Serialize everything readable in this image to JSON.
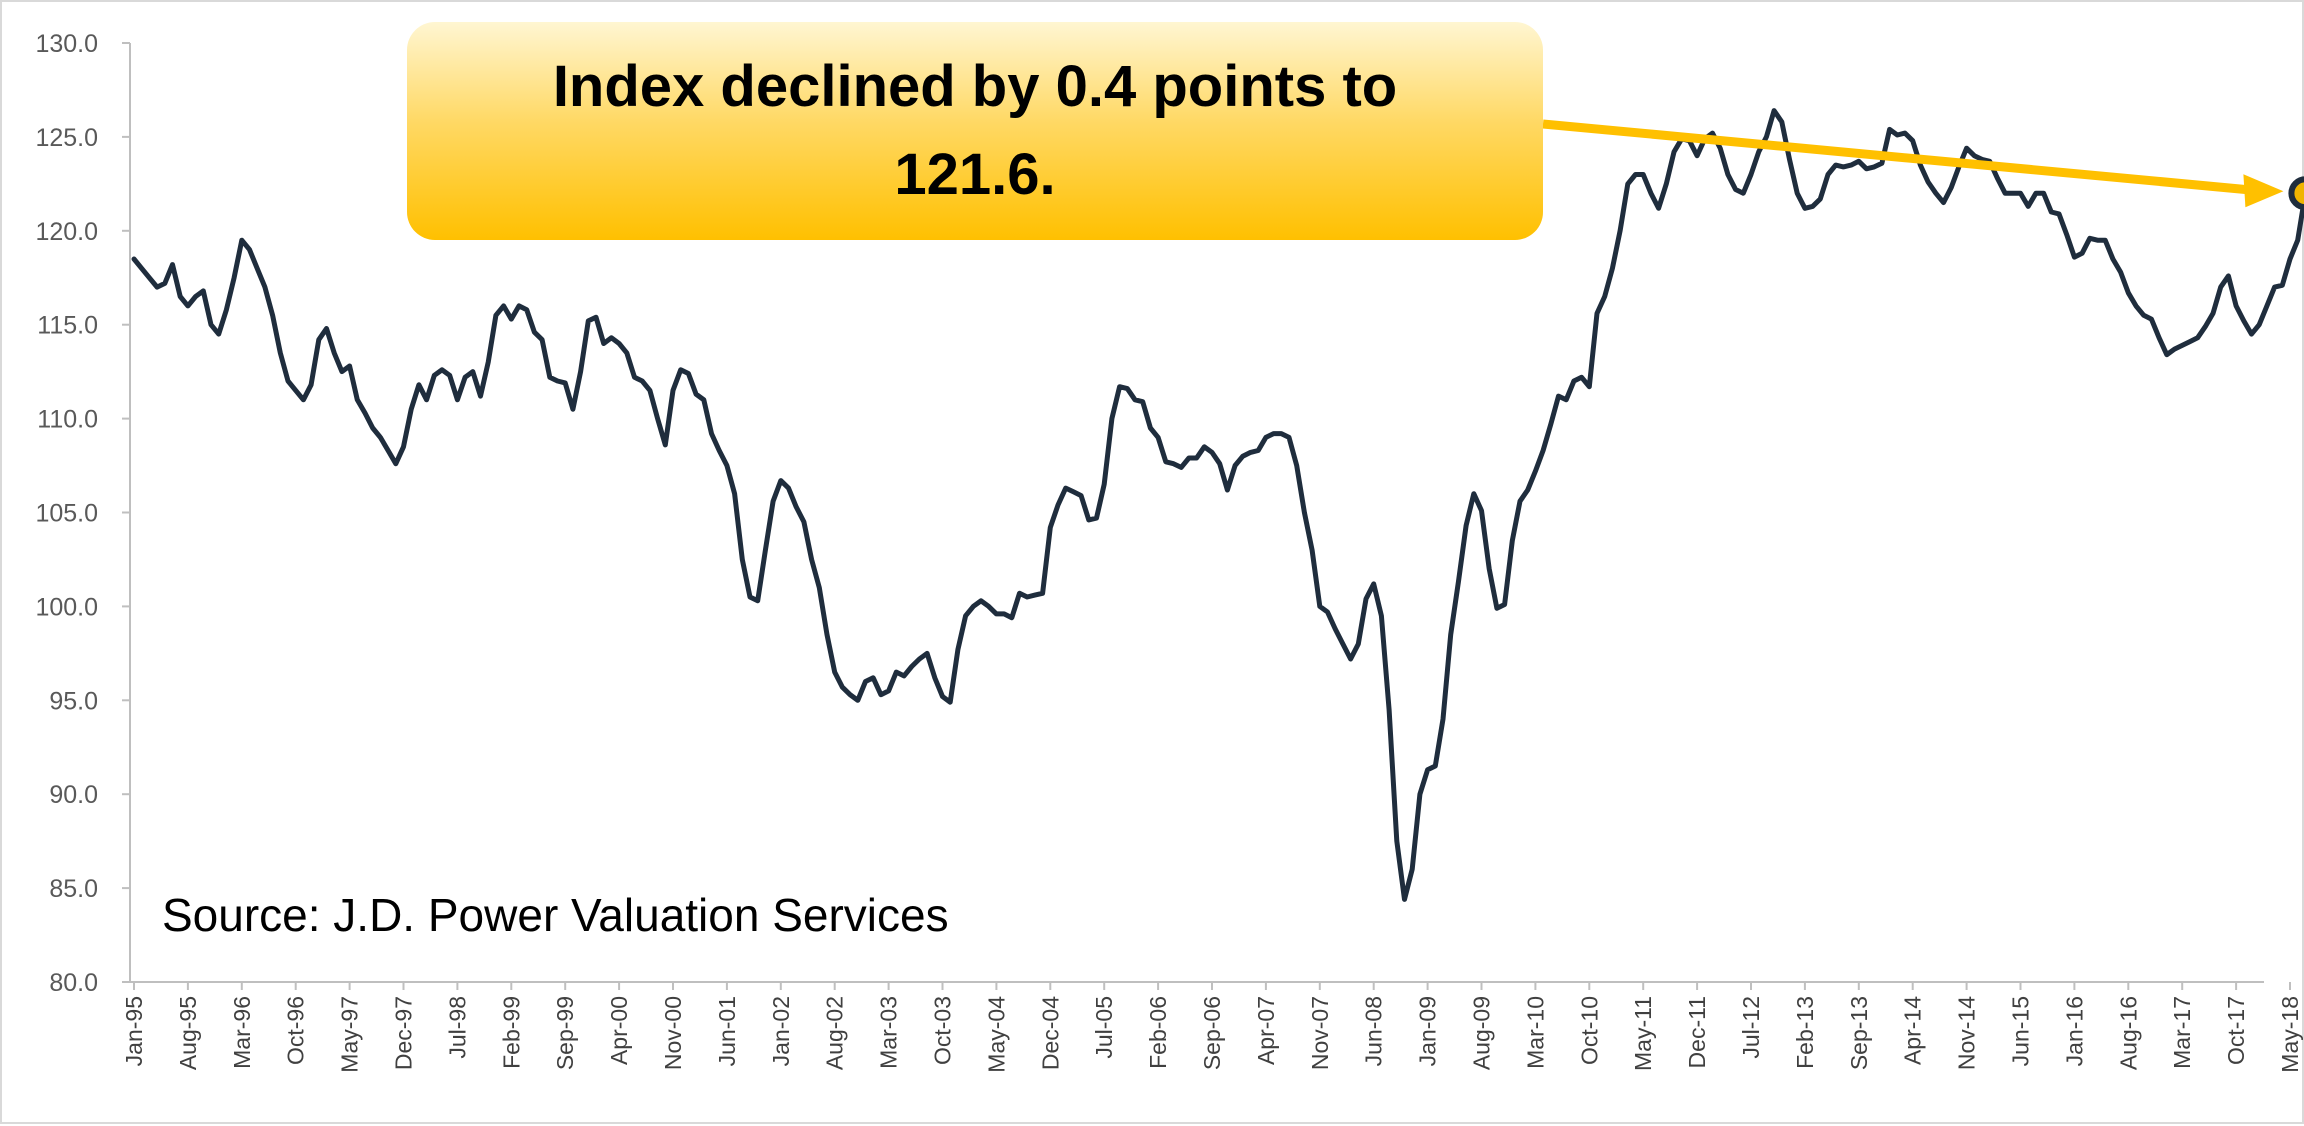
{
  "callout": {
    "text": "Index declined by 0.4 points to 121.6."
  },
  "source_note": "Source: J.D. Power Valuation Services",
  "colors": {
    "line": "#1f2d3d",
    "accent": "#ffc000",
    "marker_fill": "#f0b400",
    "axis": "#bfbfbf"
  },
  "chart_data": {
    "type": "line",
    "title": "",
    "xlabel": "",
    "ylabel": "",
    "ylim": [
      80.0,
      130.0
    ],
    "yticks": [
      "80.0",
      "85.0",
      "90.0",
      "95.0",
      "100.0",
      "105.0",
      "110.0",
      "115.0",
      "120.0",
      "125.0",
      "130.0"
    ],
    "xticks": [
      "Jan-95",
      "Aug-95",
      "Mar-96",
      "Oct-96",
      "May-97",
      "Dec-97",
      "Jul-98",
      "Feb-99",
      "Sep-99",
      "Apr-00",
      "Nov-00",
      "Jun-01",
      "Jan-02",
      "Aug-02",
      "Mar-03",
      "Oct-03",
      "May-04",
      "Dec-04",
      "Jul-05",
      "Feb-06",
      "Sep-06",
      "Apr-07",
      "Nov-07",
      "Jun-08",
      "Jan-09",
      "Aug-09",
      "Mar-10",
      "Oct-10",
      "May-11",
      "Dec-11",
      "Jul-12",
      "Feb-13",
      "Sep-13",
      "Apr-14",
      "Nov-14",
      "Jun-15",
      "Jan-16",
      "Aug-16",
      "Mar-17",
      "Oct-17",
      "May-18"
    ],
    "grid": false,
    "start_month": "Jan-95",
    "series": [
      {
        "values": [
          118.5,
          118.0,
          117.5,
          117.0,
          117.2,
          118.2,
          116.5,
          116.0,
          116.5,
          116.8,
          115.0,
          114.5,
          115.8,
          117.5,
          119.5,
          119.0,
          118.0,
          117.0,
          115.5,
          113.5,
          112.0,
          111.5,
          111.0,
          111.8,
          114.2,
          114.8,
          113.5,
          112.5,
          112.8,
          111.0,
          110.3,
          109.5,
          109.0,
          108.3,
          107.6,
          108.5,
          110.5,
          111.8,
          111.0,
          112.3,
          112.6,
          112.3,
          111.0,
          112.2,
          112.5,
          111.2,
          113.0,
          115.5,
          116.0,
          115.3,
          116.0,
          115.8,
          114.6,
          114.2,
          112.2,
          112.0,
          111.9,
          110.5,
          112.5,
          115.2,
          115.4,
          114.0,
          114.3,
          114.0,
          113.5,
          112.2,
          112.0,
          111.5,
          110.0,
          108.6,
          111.5,
          112.6,
          112.4,
          111.3,
          111.0,
          109.2,
          108.3,
          107.5,
          106.0,
          102.5,
          100.5,
          100.3,
          103.0,
          105.6,
          106.7,
          106.3,
          105.3,
          104.5,
          102.5,
          101.0,
          98.5,
          96.5,
          95.7,
          95.3,
          95.0,
          96.0,
          96.2,
          95.3,
          95.5,
          96.5,
          96.3,
          96.8,
          97.2,
          97.5,
          96.2,
          95.2,
          94.9,
          97.7,
          99.5,
          100.0,
          100.3,
          100.0,
          99.6,
          99.6,
          99.4,
          100.7,
          100.5,
          100.6,
          100.7,
          104.2,
          105.4,
          106.3,
          106.1,
          105.9,
          104.6,
          104.7,
          106.5,
          110.0,
          111.7,
          111.6,
          111.0,
          110.9,
          109.5,
          109.0,
          107.7,
          107.6,
          107.4,
          107.9,
          107.9,
          108.5,
          108.2,
          107.6,
          106.2,
          107.5,
          108.0,
          108.2,
          108.3,
          109.0,
          109.2,
          109.2,
          109.0,
          107.5,
          105.0,
          103.0,
          100.0,
          99.7,
          98.8,
          98.0,
          97.2,
          98.0,
          100.4,
          101.2,
          99.5,
          94.5,
          87.5,
          84.4,
          86.0,
          90.0,
          91.3,
          91.5,
          94.0,
          98.5,
          101.3,
          104.3,
          106.0,
          105.1,
          102.0,
          99.9,
          100.1,
          103.5,
          105.6,
          106.2,
          107.2,
          108.3,
          109.7,
          111.2,
          111.0,
          112.0,
          112.2,
          111.7,
          115.6,
          116.5,
          118.0,
          120.0,
          122.5,
          123.0,
          123.0,
          122.0,
          121.2,
          122.5,
          124.2,
          124.9,
          124.8,
          124.0,
          124.9,
          125.2,
          124.4,
          123.0,
          122.2,
          122.0,
          123.0,
          124.2,
          125.0,
          126.4,
          125.8,
          123.8,
          122.0,
          121.2,
          121.3,
          121.7,
          123.0,
          123.5,
          123.4,
          123.5,
          123.7,
          123.3,
          123.4,
          123.6,
          125.4,
          125.1,
          125.2,
          124.8,
          123.5,
          122.6,
          122.0,
          121.5,
          122.3,
          123.4,
          124.4,
          124.0,
          123.8,
          123.7,
          122.8,
          122.0,
          122.0,
          122.0,
          121.3,
          122.0,
          122.0,
          121.0,
          120.9,
          119.8,
          118.6,
          118.8,
          119.6,
          119.5,
          119.5,
          118.5,
          117.8,
          116.7,
          116.0,
          115.5,
          115.3,
          114.3,
          113.4,
          113.7,
          113.9,
          114.1,
          114.3,
          114.9,
          115.6,
          117.0,
          117.6,
          116.0,
          115.2,
          114.5,
          115.0,
          116.0,
          117.0,
          117.1,
          118.5,
          119.5,
          122.0,
          122.0,
          121.6
        ]
      }
    ],
    "highlight": {
      "index": 282,
      "value": 122.0
    }
  }
}
